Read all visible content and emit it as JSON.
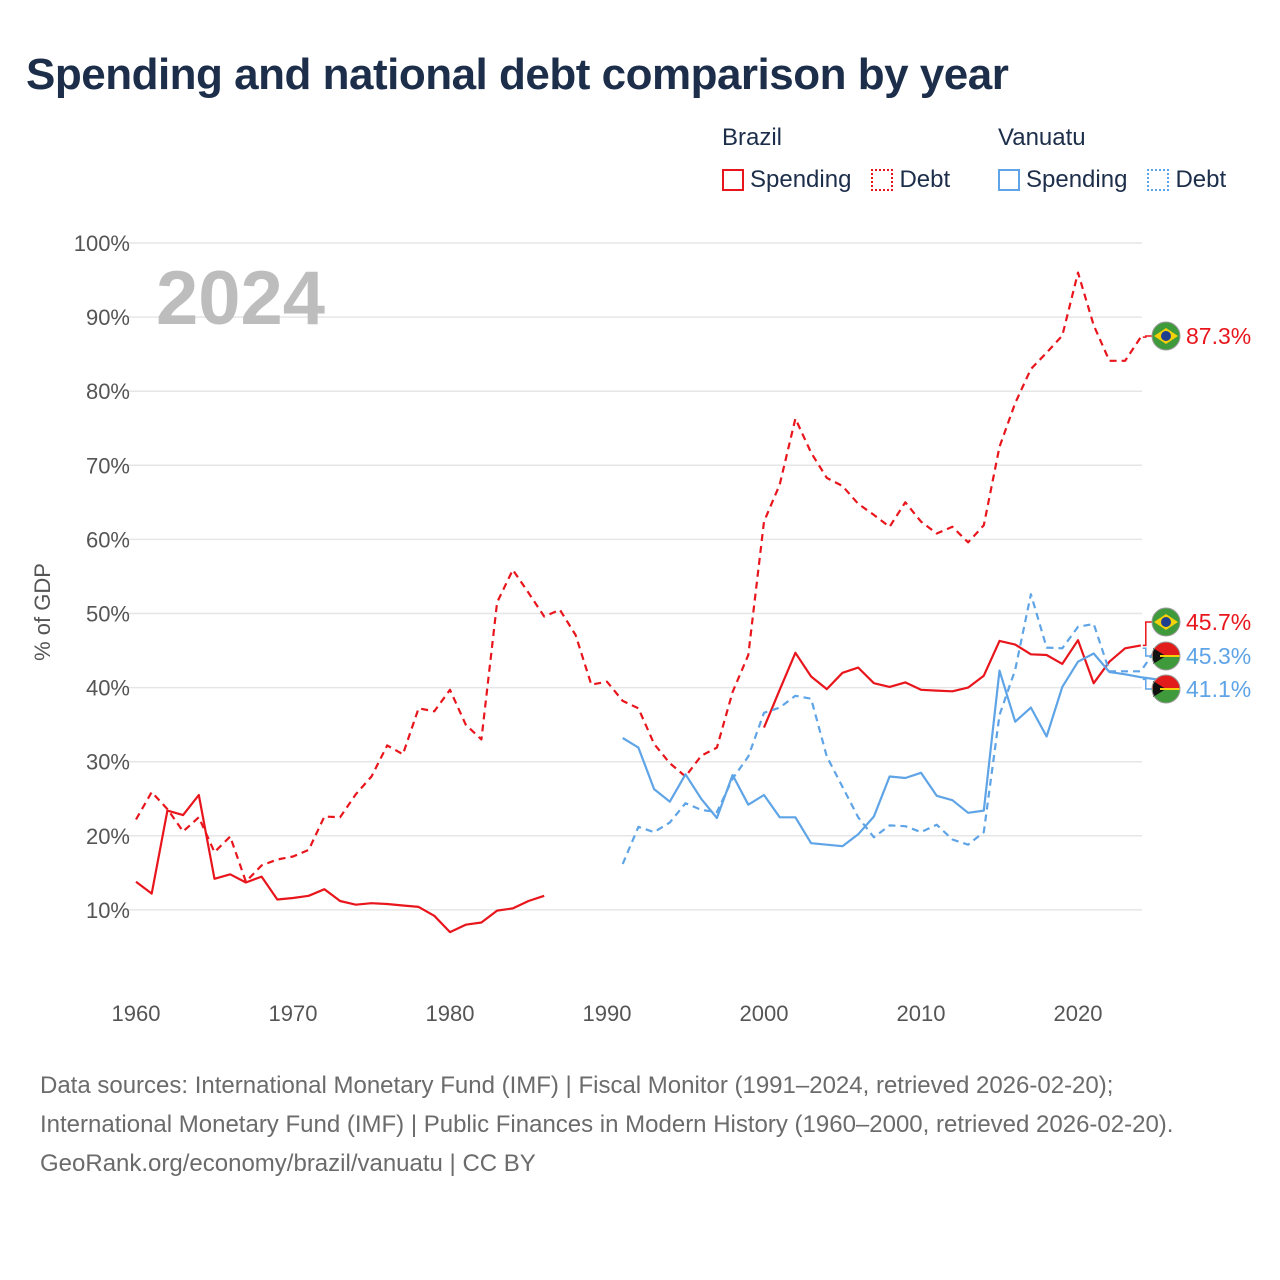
{
  "title": "Spending and national debt comparison by year",
  "legend": {
    "groups": [
      {
        "name": "Brazil",
        "items": [
          {
            "label": "Spending"
          },
          {
            "label": "Debt"
          }
        ]
      },
      {
        "name": "Vanuatu",
        "items": [
          {
            "label": "Spending"
          },
          {
            "label": "Debt"
          }
        ]
      }
    ]
  },
  "colors": {
    "brazil": "#e8161c",
    "vanuatu": "#5ea4e6",
    "grid": "#e6e6e6",
    "text": "#1c2e4a"
  },
  "footer": {
    "sources": "Data sources: International Monetary Fund (IMF) | Fiscal Monitor (1991–2024, retrieved 2026-02-20); International Monetary Fund (IMF) | Public Finances in Modern History (1960–2000, retrieved 2026-02-20).",
    "credit": "GeoRank.org/economy/brazil/vanuatu | CC BY"
  },
  "chart_data": {
    "type": "line",
    "year_label": "2024",
    "ylabel": "% of GDP",
    "xlim": [
      1960,
      2024
    ],
    "ylim": [
      0,
      100
    ],
    "x_ticks": [
      1960,
      1970,
      1980,
      1990,
      2000,
      2010,
      2020
    ],
    "y_ticks": [
      {
        "value": 10,
        "label": "10%"
      },
      {
        "value": 20,
        "label": "20%"
      },
      {
        "value": 30,
        "label": "30%"
      },
      {
        "value": 40,
        "label": "40%"
      },
      {
        "value": 50,
        "label": "50%"
      },
      {
        "value": 60,
        "label": "60%"
      },
      {
        "value": 70,
        "label": "70%"
      },
      {
        "value": 80,
        "label": "80%"
      },
      {
        "value": 90,
        "label": "90%"
      },
      {
        "value": 100,
        "label": "100%"
      }
    ],
    "end_labels": [
      {
        "series": "Brazil Debt",
        "label": "87.3%",
        "color": "#e8161c",
        "flag": "brazil"
      },
      {
        "series": "Brazil Spending",
        "label": "45.7%",
        "color": "#e8161c",
        "flag": "brazil"
      },
      {
        "series": "Vanuatu Debt",
        "label": "45.3%",
        "color": "#5ea4e6",
        "flag": "vanuatu"
      },
      {
        "series": "Vanuatu Spending",
        "label": "41.1%",
        "color": "#5ea4e6",
        "flag": "vanuatu"
      }
    ],
    "series": [
      {
        "name": "Brazil Spending",
        "country": "Brazil",
        "kind": "spending",
        "color": "#e8161c",
        "dash": false,
        "start": 1960,
        "values": [
          13.8,
          12.2,
          23.4,
          22.8,
          25.5,
          14.2,
          14.8,
          13.7,
          14.5,
          11.4,
          11.6,
          11.9,
          12.8,
          11.2,
          10.7,
          10.9,
          10.8,
          10.6,
          10.4,
          9.2,
          7.0,
          8.0,
          8.3,
          9.9,
          10.2,
          11.2,
          11.9,
          null,
          null,
          null,
          null,
          null,
          null,
          null,
          null,
          null,
          null,
          null,
          null,
          null,
          34.6,
          39.7,
          44.7,
          41.5,
          39.8,
          42.0,
          42.7,
          40.6,
          40.1,
          40.7,
          39.7,
          39.6,
          39.5,
          40.0,
          41.6,
          46.3,
          45.8,
          44.5,
          44.4,
          43.2,
          46.4,
          40.6,
          43.5,
          45.3,
          45.7
        ]
      },
      {
        "name": "Brazil Debt",
        "country": "Brazil",
        "kind": "debt",
        "color": "#e8161c",
        "dash": true,
        "start": 1960,
        "values": [
          22.2,
          25.9,
          23.6,
          20.6,
          22.5,
          17.8,
          19.9,
          13.8,
          16.0,
          16.8,
          17.2,
          18.1,
          22.6,
          22.5,
          25.6,
          28.0,
          32.2,
          31.0,
          37.2,
          36.8,
          39.7,
          35.0,
          33.0,
          51.5,
          55.9,
          52.8,
          49.6,
          50.5,
          47.1,
          40.4,
          40.8,
          38.2,
          37.2,
          32.4,
          29.8,
          28.0,
          30.8,
          31.9,
          39.4,
          44.4,
          62.4,
          67.4,
          76.3,
          71.7,
          68.3,
          67.2,
          64.8,
          63.3,
          61.7,
          65.0,
          62.4,
          60.8,
          61.7,
          59.6,
          61.9,
          72.5,
          78.4,
          83.0,
          85.2,
          87.5,
          96.0,
          88.9,
          84.1,
          84.1,
          87.3
        ]
      },
      {
        "name": "Vanuatu Spending",
        "country": "Vanuatu",
        "kind": "spending",
        "color": "#5ea4e6",
        "dash": false,
        "start": 1991,
        "values": [
          33.2,
          31.9,
          26.3,
          24.6,
          28.3,
          25.0,
          22.4,
          28.2,
          24.2,
          25.5,
          22.5,
          22.5,
          19.0,
          18.8,
          18.6,
          20.2,
          22.6,
          28.0,
          27.8,
          28.5,
          25.4,
          24.8,
          23.1,
          23.4,
          42.3,
          35.4,
          37.3,
          33.4,
          40.1,
          43.5,
          44.6,
          42.1,
          41.8,
          41.4,
          41.1
        ]
      },
      {
        "name": "Vanuatu Debt",
        "country": "Vanuatu",
        "kind": "debt",
        "color": "#5ea4e6",
        "dash": true,
        "start": 1991,
        "values": [
          16.2,
          21.2,
          20.5,
          21.8,
          24.4,
          23.5,
          23.2,
          27.7,
          30.7,
          36.6,
          37.3,
          38.9,
          38.5,
          30.7,
          26.6,
          22.5,
          19.8,
          21.4,
          21.3,
          20.5,
          21.5,
          19.5,
          18.8,
          20.5,
          36.3,
          42.4,
          52.6,
          45.4,
          45.3,
          48.2,
          48.6,
          42.2,
          42.2,
          42.2,
          45.3
        ]
      }
    ]
  }
}
